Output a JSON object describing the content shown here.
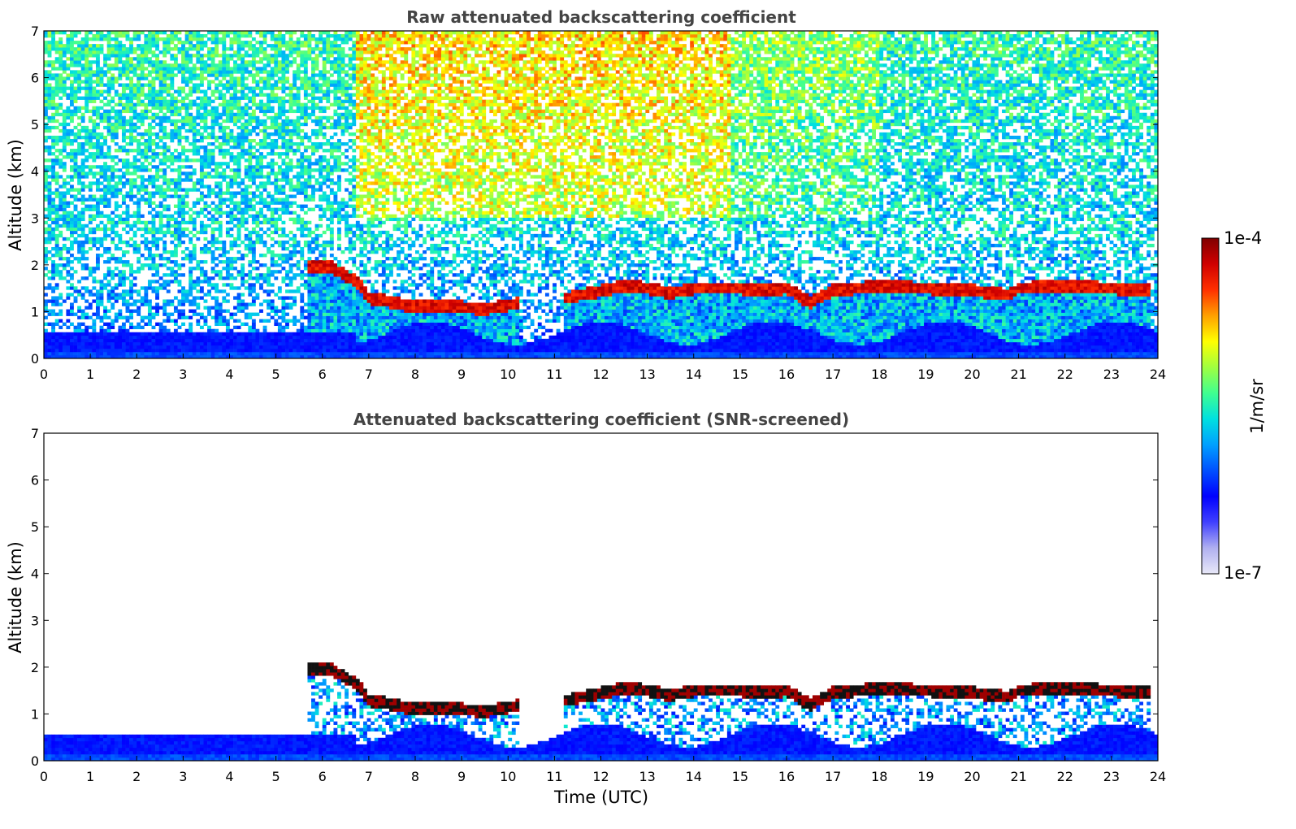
{
  "chart_data": [
    {
      "type": "heatmap",
      "title": "Raw attenuated backscattering coefficient",
      "xlabel": "",
      "ylabel": "Altitude (km)",
      "xlim": [
        0,
        24
      ],
      "ylim": [
        0,
        7
      ],
      "xticks": [
        "0",
        "1",
        "2",
        "3",
        "4",
        "5",
        "6",
        "7",
        "8",
        "9",
        "10",
        "11",
        "12",
        "13",
        "14",
        "15",
        "16",
        "17",
        "18",
        "19",
        "20",
        "21",
        "22",
        "23",
        "24"
      ],
      "yticks": [
        "0",
        "1",
        "2",
        "3",
        "4",
        "5",
        "6",
        "7"
      ],
      "screened": false,
      "cloud_layer": [
        {
          "t": 5.7,
          "alt": 1.95
        },
        {
          "t": 6.2,
          "alt": 1.95
        },
        {
          "t": 6.8,
          "alt": 1.6
        },
        {
          "t": 7.0,
          "alt": 1.3
        },
        {
          "t": 7.5,
          "alt": 1.2
        },
        {
          "t": 8.0,
          "alt": 1.1
        },
        {
          "t": 8.5,
          "alt": 1.1
        },
        {
          "t": 9.0,
          "alt": 1.1
        },
        {
          "t": 9.5,
          "alt": 1.05
        },
        {
          "t": 10.0,
          "alt": 1.15
        },
        {
          "t": 11.3,
          "alt": 1.3
        },
        {
          "t": 12.0,
          "alt": 1.45
        },
        {
          "t": 12.5,
          "alt": 1.55
        },
        {
          "t": 13.0,
          "alt": 1.5
        },
        {
          "t": 13.5,
          "alt": 1.4
        },
        {
          "t": 14.0,
          "alt": 1.5
        },
        {
          "t": 15.0,
          "alt": 1.5
        },
        {
          "t": 15.5,
          "alt": 1.45
        },
        {
          "t": 16.0,
          "alt": 1.5
        },
        {
          "t": 16.5,
          "alt": 1.2
        },
        {
          "t": 17.0,
          "alt": 1.45
        },
        {
          "t": 18.0,
          "alt": 1.55
        },
        {
          "t": 19.0,
          "alt": 1.5
        },
        {
          "t": 20.0,
          "alt": 1.45
        },
        {
          "t": 20.8,
          "alt": 1.35
        },
        {
          "t": 21.0,
          "alt": 1.5
        },
        {
          "t": 22.0,
          "alt": 1.55
        },
        {
          "t": 23.0,
          "alt": 1.5
        },
        {
          "t": 23.8,
          "alt": 1.45
        }
      ]
    },
    {
      "type": "heatmap",
      "title": "Attenuated backscattering coefficient (SNR-screened)",
      "xlabel": "Time (UTC)",
      "ylabel": "Altitude (km)",
      "xlim": [
        0,
        24
      ],
      "ylim": [
        0,
        7
      ],
      "xticks": [
        "0",
        "1",
        "2",
        "3",
        "4",
        "5",
        "6",
        "7",
        "8",
        "9",
        "10",
        "11",
        "12",
        "13",
        "14",
        "15",
        "16",
        "17",
        "18",
        "19",
        "20",
        "21",
        "22",
        "23",
        "24"
      ],
      "yticks": [
        "0",
        "1",
        "2",
        "3",
        "4",
        "5",
        "6",
        "7"
      ],
      "screened": true
    }
  ],
  "colorbar": {
    "label": "1/m/sr",
    "max_label": "1e-4",
    "min_label": "1e-7",
    "colors": [
      "#e8e8f8",
      "#b0b0f0",
      "#4040ff",
      "#0000ff",
      "#0050ff",
      "#00a0ff",
      "#00e0e0",
      "#40ff90",
      "#a0ff40",
      "#ffff00",
      "#ffa000",
      "#ff3000",
      "#d00000",
      "#800000"
    ]
  }
}
